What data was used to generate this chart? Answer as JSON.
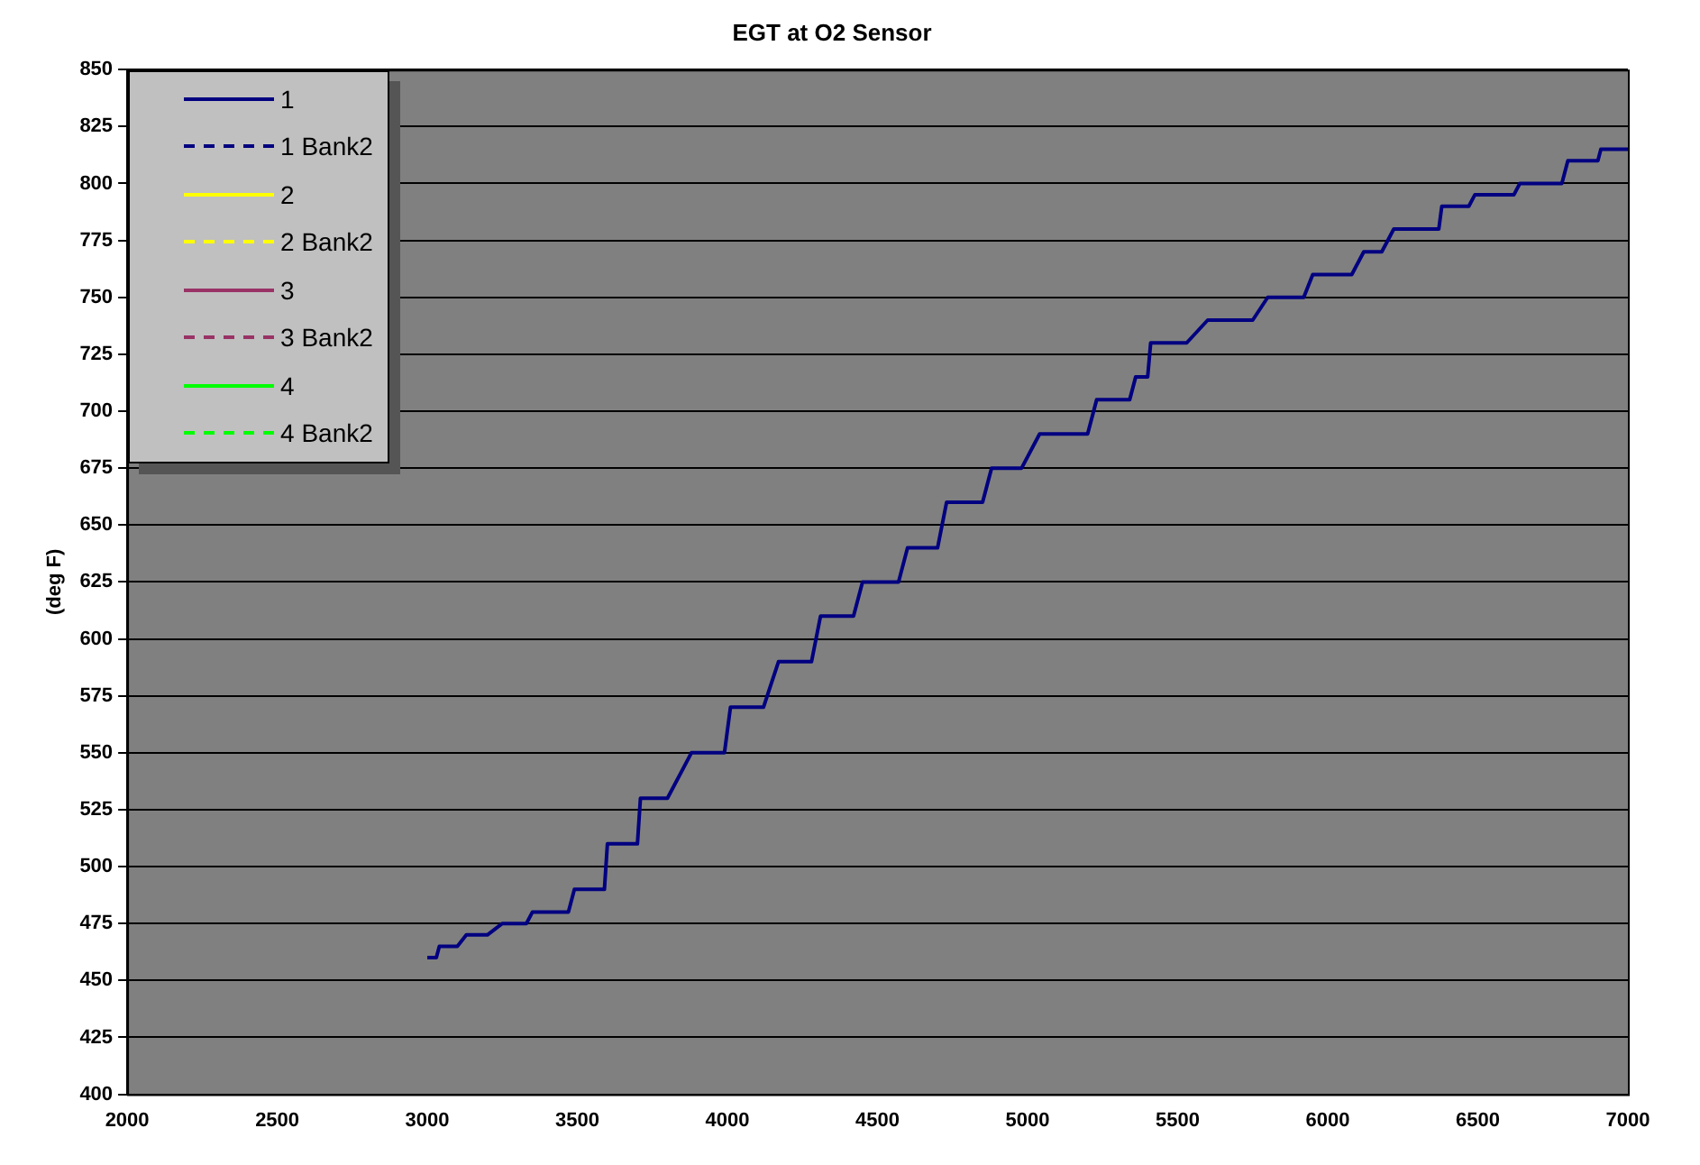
{
  "chart_data": {
    "type": "line",
    "title": "EGT at O2 Sensor",
    "ylabel": "(deg F)",
    "xlim": [
      2000,
      7000
    ],
    "xticks": [
      2000,
      2500,
      3000,
      3500,
      4000,
      4500,
      5000,
      5500,
      6000,
      6500,
      7000
    ],
    "ylim": [
      400,
      850
    ],
    "yticks": [
      400,
      425,
      450,
      475,
      500,
      525,
      550,
      575,
      600,
      625,
      650,
      675,
      700,
      725,
      750,
      775,
      800,
      825,
      850
    ],
    "grid": "y",
    "legend": "top left",
    "marker": "none",
    "series": [
      {
        "name": "1",
        "color": "#000080",
        "line_style": "solid",
        "x": [
          3000,
          3030,
          3040,
          3100,
          3130,
          3200,
          3250,
          3330,
          3350,
          3470,
          3490,
          3590,
          3600,
          3700,
          3710,
          3800,
          3880,
          3990,
          4010,
          4120,
          4170,
          4280,
          4310,
          4420,
          4450,
          4570,
          4600,
          4700,
          4730,
          4850,
          4880,
          4980,
          5040,
          5200,
          5230,
          5340,
          5360,
          5400,
          5410,
          5530,
          5600,
          5750,
          5800,
          5920,
          5950,
          6080,
          6120,
          6180,
          6220,
          6370,
          6380,
          6470,
          6490,
          6620,
          6640,
          6780,
          6800,
          6900,
          6910,
          7000
        ],
        "values": [
          460,
          460,
          465,
          465,
          470,
          470,
          475,
          475,
          480,
          480,
          490,
          490,
          510,
          510,
          530,
          530,
          550,
          550,
          570,
          570,
          590,
          590,
          610,
          610,
          625,
          625,
          640,
          640,
          660,
          660,
          675,
          675,
          690,
          690,
          705,
          705,
          715,
          715,
          730,
          730,
          740,
          740,
          750,
          750,
          760,
          760,
          770,
          770,
          780,
          780,
          790,
          790,
          795,
          795,
          800,
          800,
          810,
          810,
          815,
          815
        ]
      },
      {
        "name": "1 Bank2",
        "color": "#000080",
        "line_style": "dotted"
      },
      {
        "name": "2",
        "color": "#ffff00",
        "line_style": "solid"
      },
      {
        "name": "2 Bank2",
        "color": "#ffff00",
        "line_style": "dotted"
      },
      {
        "name": "3",
        "color": "#993366",
        "line_style": "solid"
      },
      {
        "name": "3 Bank2",
        "color": "#993366",
        "line_style": "dotted"
      },
      {
        "name": "4",
        "color": "#00ff00",
        "line_style": "solid"
      },
      {
        "name": "4 Bank2",
        "color": "#00ff00",
        "line_style": "dotted"
      }
    ]
  }
}
